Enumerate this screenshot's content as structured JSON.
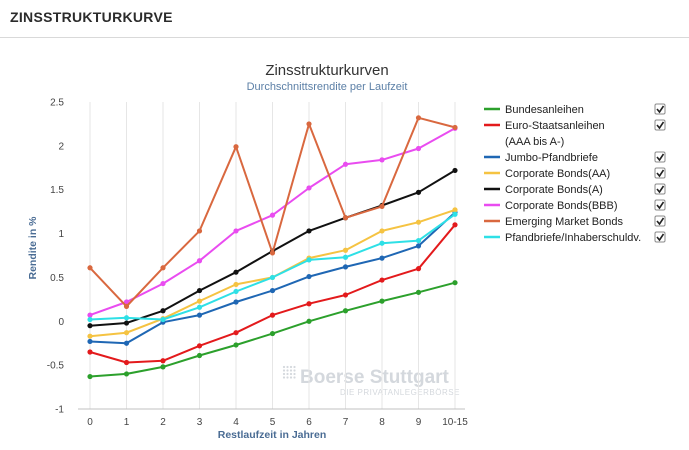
{
  "header": {
    "title": "ZINSSTRUKTURKURVE"
  },
  "watermark": {
    "brand": "Boerse Stuttgart",
    "tagline": "DIE PRIVATANLEGERBÖRSE"
  },
  "chart_data": {
    "type": "line",
    "title": "Zinsstrukturkurven",
    "subtitle": "Durchschnittsrendite per Laufzeit",
    "xlabel": "Restlaufzeit in Jahren",
    "ylabel": "Rendite in %",
    "categories": [
      "0",
      "1",
      "2",
      "3",
      "4",
      "5",
      "6",
      "7",
      "8",
      "9",
      "10-15"
    ],
    "ylim": [
      -1,
      2.5
    ],
    "yticks": [
      "-1",
      "-0.5",
      "0",
      "0.5",
      "1",
      "1.5",
      "2",
      "2.5"
    ],
    "grid": "vertical",
    "legend_position": "right",
    "series": [
      {
        "name": "Bundesanleihen",
        "color": "#2ca02c",
        "checked": true,
        "values": [
          -0.63,
          -0.6,
          -0.52,
          -0.39,
          -0.27,
          -0.14,
          0.0,
          0.12,
          0.23,
          0.33,
          0.44
        ]
      },
      {
        "name": "Euro-Staatsanleihen",
        "name_line2": "(AAA bis A-)",
        "color": "#e31a1c",
        "checked": true,
        "values": [
          -0.35,
          -0.47,
          -0.45,
          -0.28,
          -0.13,
          0.07,
          0.2,
          0.3,
          0.47,
          0.6,
          1.1
        ]
      },
      {
        "name": "Jumbo-Pfandbriefe",
        "color": "#1f67b4",
        "checked": true,
        "values": [
          -0.23,
          -0.25,
          -0.01,
          0.07,
          0.22,
          0.35,
          0.51,
          0.62,
          0.72,
          0.86,
          1.24
        ]
      },
      {
        "name": "Corporate Bonds(AA)",
        "color": "#f5c342",
        "checked": true,
        "values": [
          -0.17,
          -0.13,
          0.03,
          0.23,
          0.42,
          0.5,
          0.72,
          0.81,
          1.03,
          1.13,
          1.27
        ]
      },
      {
        "name": "Corporate Bonds(A)",
        "color": "#111111",
        "checked": true,
        "values": [
          -0.05,
          -0.02,
          0.12,
          0.35,
          0.56,
          0.8,
          1.03,
          1.18,
          1.32,
          1.47,
          1.72
        ]
      },
      {
        "name": "Corporate Bonds(BBB)",
        "color": "#e94cf0",
        "checked": true,
        "values": [
          0.07,
          0.22,
          0.43,
          0.69,
          1.03,
          1.21,
          1.52,
          1.79,
          1.84,
          1.97,
          2.2
        ]
      },
      {
        "name": "Emerging Market Bonds",
        "color": "#d9683f",
        "checked": true,
        "values": [
          0.61,
          0.17,
          0.61,
          1.03,
          1.99,
          0.78,
          2.25,
          1.18,
          1.31,
          2.32,
          2.21
        ]
      },
      {
        "name": "Pfandbriefe/Inhaberschuldv.",
        "color": "#2ee0e6",
        "checked": true,
        "values": [
          0.02,
          0.04,
          0.02,
          0.16,
          0.34,
          0.5,
          0.7,
          0.73,
          0.89,
          0.92,
          1.22
        ]
      }
    ]
  }
}
